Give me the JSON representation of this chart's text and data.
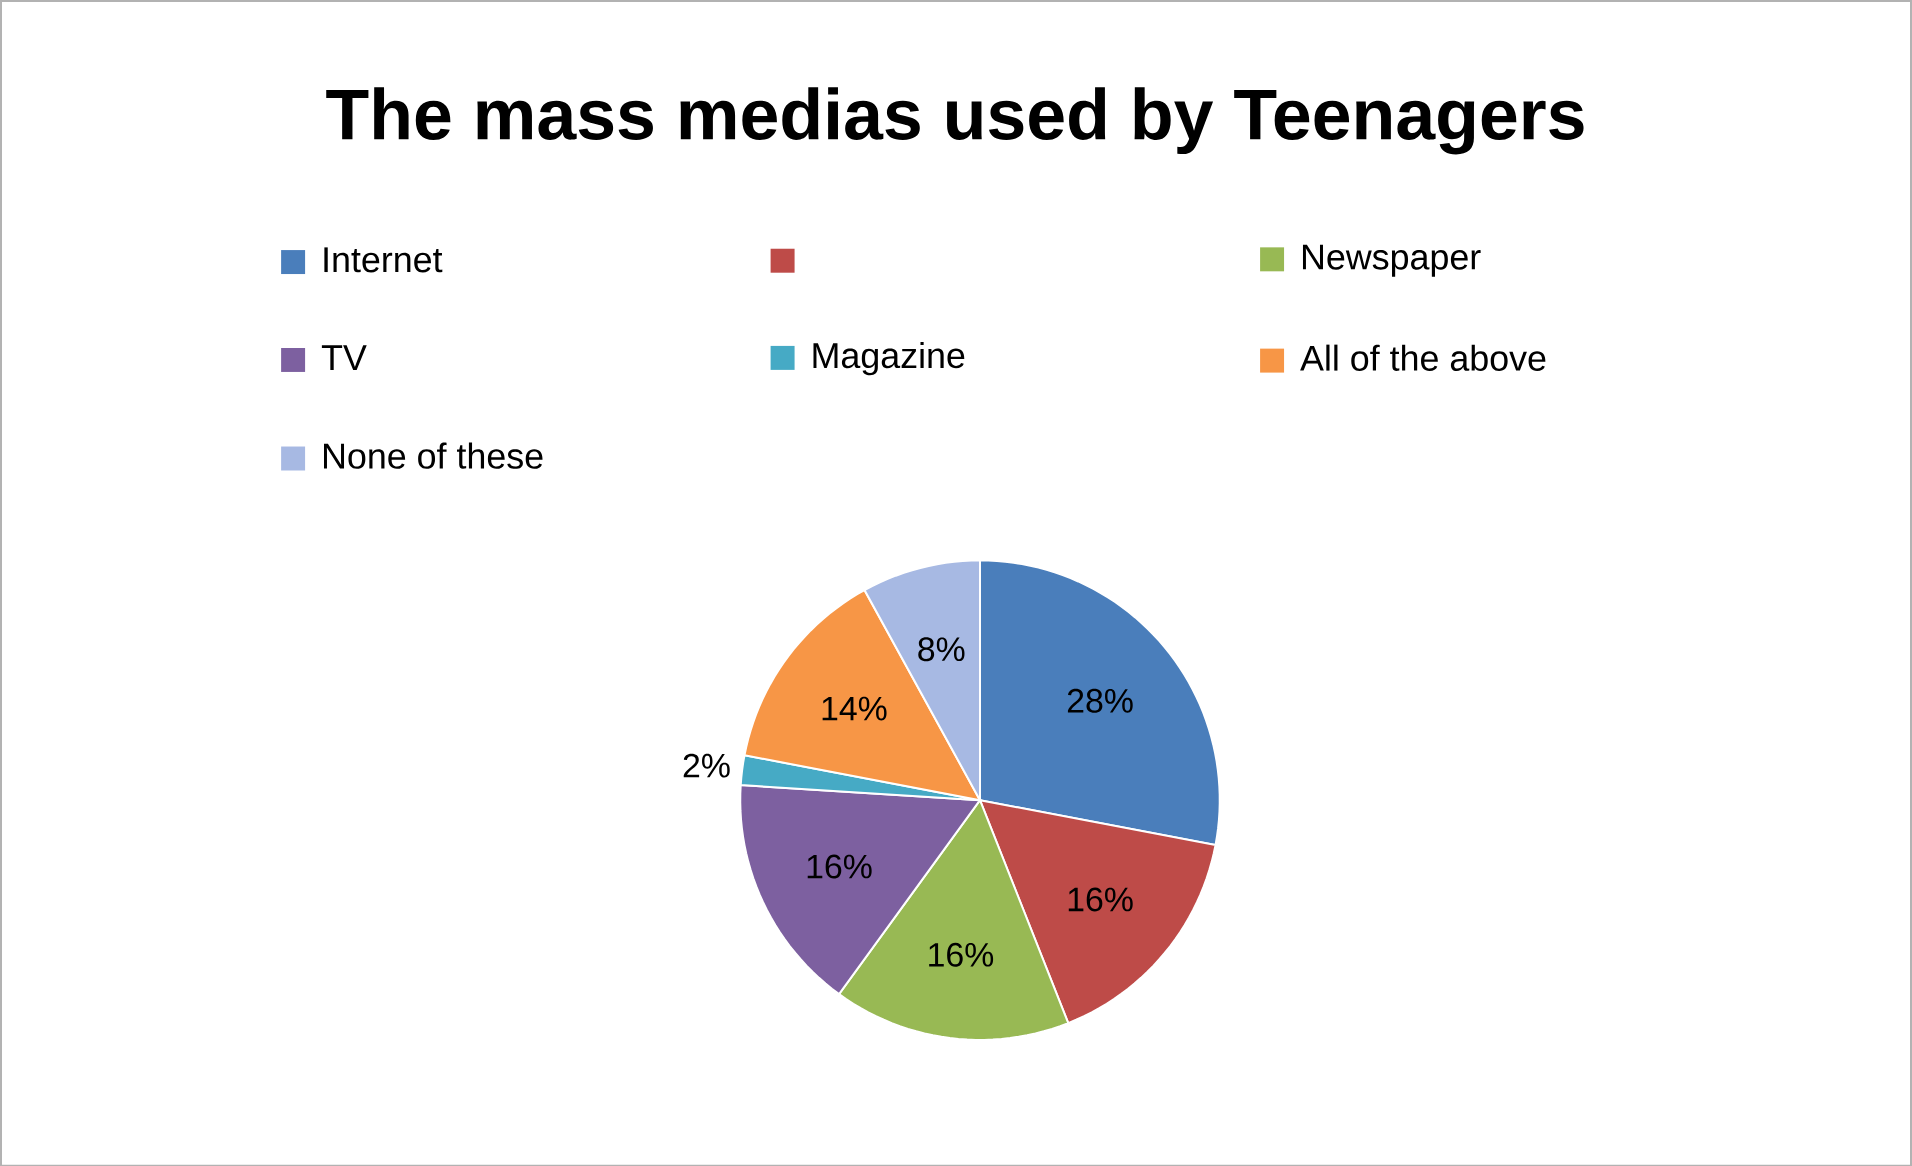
{
  "chart_data": {
    "type": "pie",
    "title": "The mass medias used by Teenagers",
    "categories": [
      "Internet",
      null,
      "Newspaper",
      "TV",
      "Magazine",
      "All of the above",
      "None  of these"
    ],
    "values": [
      28,
      16,
      16,
      16,
      2,
      14,
      8
    ],
    "value_labels": [
      "28%",
      "16%",
      "16%",
      "16%",
      "2%",
      "14%",
      "8%"
    ],
    "colors": [
      "#4a7ebb",
      "#be4b48",
      "#98b954",
      "#7d60a0",
      "#46aac5",
      "#f79646",
      "#a7b9e3"
    ],
    "legend": "top"
  }
}
